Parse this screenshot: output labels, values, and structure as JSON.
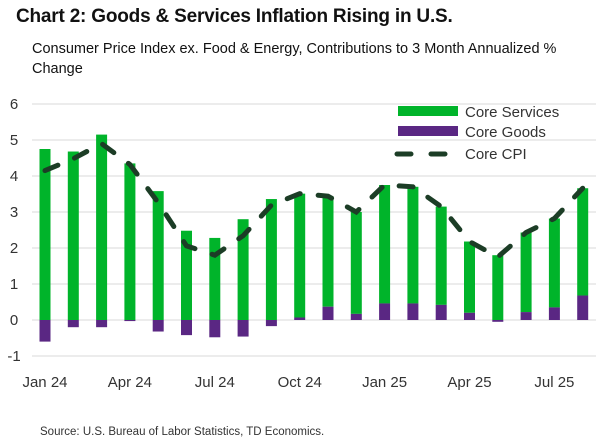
{
  "title": "Chart 2: Goods & Services Inflation Rising in U.S.",
  "subtitle": "Consumer Price Index ex. Food & Energy, Contributions to 3 Month Annualized % Change",
  "source": "Source: U.S. Bureau of Labor Statistics, TD Economics.",
  "colors": {
    "services": "#00b42a",
    "goods": "#5a2783",
    "cpi": "#1c3d26",
    "grid": "#d9d9d9"
  },
  "chart_data": {
    "type": "bar",
    "stacked": true,
    "title": "Chart 2: Goods & Services Inflation Rising in U.S.",
    "subtitle": "Consumer Price Index ex. Food & Energy, Contributions to 3 Month Annualized % Change",
    "xlabel": "",
    "ylabel": "",
    "ylim": [
      -1,
      6
    ],
    "yticks": [
      -1,
      0,
      1,
      2,
      3,
      4,
      5,
      6
    ],
    "grid": true,
    "legend_position": "top-right",
    "categories": [
      "Jan 24",
      "Feb 24",
      "Mar 24",
      "Apr 24",
      "May 24",
      "Jun 24",
      "Jul 24",
      "Aug 24",
      "Sep 24",
      "Oct 24",
      "Nov 24",
      "Dec 24",
      "Jan 25",
      "Feb 25",
      "Mar 25",
      "Apr 25",
      "May 25",
      "Jun 25",
      "Jul 25",
      "Aug 25"
    ],
    "xtick_labels": [
      {
        "index": 0,
        "label": "Jan 24"
      },
      {
        "index": 3,
        "label": "Apr 24"
      },
      {
        "index": 6,
        "label": "Jul 24"
      },
      {
        "index": 9,
        "label": "Oct 24"
      },
      {
        "index": 12,
        "label": "Jan 25"
      },
      {
        "index": 15,
        "label": "Apr 25"
      },
      {
        "index": 18,
        "label": "Jul 25"
      }
    ],
    "series": [
      {
        "name": "Core Services",
        "type": "bar",
        "values": [
          4.75,
          4.68,
          5.15,
          4.35,
          3.58,
          2.48,
          2.28,
          2.8,
          3.36,
          3.44,
          3.07,
          2.83,
          3.29,
          3.24,
          2.73,
          1.98,
          1.8,
          2.21,
          2.47,
          2.98
        ]
      },
      {
        "name": "Core Goods",
        "type": "bar",
        "values": [
          -0.6,
          -0.2,
          -0.2,
          -0.03,
          -0.32,
          -0.42,
          -0.48,
          -0.46,
          -0.17,
          0.07,
          0.37,
          0.17,
          0.46,
          0.46,
          0.42,
          0.2,
          -0.05,
          0.22,
          0.35,
          0.68
        ]
      },
      {
        "name": "Core CPI",
        "type": "line",
        "style": "dashed",
        "values": [
          4.15,
          4.48,
          4.9,
          4.32,
          3.26,
          2.06,
          1.8,
          2.34,
          3.19,
          3.51,
          3.44,
          3.0,
          3.75,
          3.7,
          3.15,
          2.18,
          1.75,
          2.43,
          2.82,
          3.66
        ]
      }
    ]
  }
}
